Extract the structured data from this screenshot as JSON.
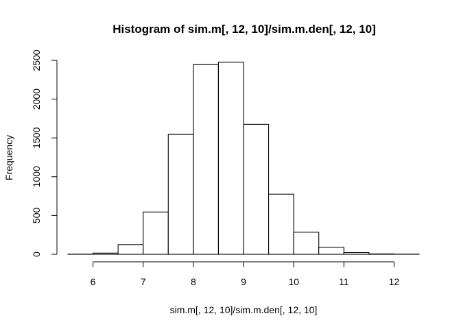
{
  "chart_data": {
    "type": "bar",
    "title": "Histogram of sim.m[, 12, 10]/sim.m.den[, 12, 10]",
    "xlabel": "sim.m[, 12, 10]/sim.m.den[, 12, 10]",
    "ylabel": "Frequency",
    "bins": [
      {
        "x0": 5.5,
        "x1": 6.0,
        "count": 2
      },
      {
        "x0": 6.0,
        "x1": 6.5,
        "count": 15
      },
      {
        "x0": 6.5,
        "x1": 7.0,
        "count": 125
      },
      {
        "x0": 7.0,
        "x1": 7.5,
        "count": 545
      },
      {
        "x0": 7.5,
        "x1": 8.0,
        "count": 1545
      },
      {
        "x0": 8.0,
        "x1": 8.5,
        "count": 2445
      },
      {
        "x0": 8.5,
        "x1": 9.0,
        "count": 2475
      },
      {
        "x0": 9.0,
        "x1": 9.5,
        "count": 1675
      },
      {
        "x0": 9.5,
        "x1": 10.0,
        "count": 775
      },
      {
        "x0": 10.0,
        "x1": 10.5,
        "count": 285
      },
      {
        "x0": 10.5,
        "x1": 11.0,
        "count": 90
      },
      {
        "x0": 11.0,
        "x1": 11.5,
        "count": 22
      },
      {
        "x0": 11.5,
        "x1": 12.0,
        "count": 5
      },
      {
        "x0": 12.0,
        "x1": 12.5,
        "count": 2
      }
    ],
    "x_ticks": [
      "6",
      "7",
      "8",
      "9",
      "10",
      "11",
      "12"
    ],
    "y_ticks": [
      "0",
      "500",
      "1000",
      "1500",
      "2000",
      "2500"
    ],
    "xlim": [
      5.5,
      12.5
    ],
    "ylim": [
      0,
      2500
    ],
    "grid": false,
    "legend": "none"
  }
}
